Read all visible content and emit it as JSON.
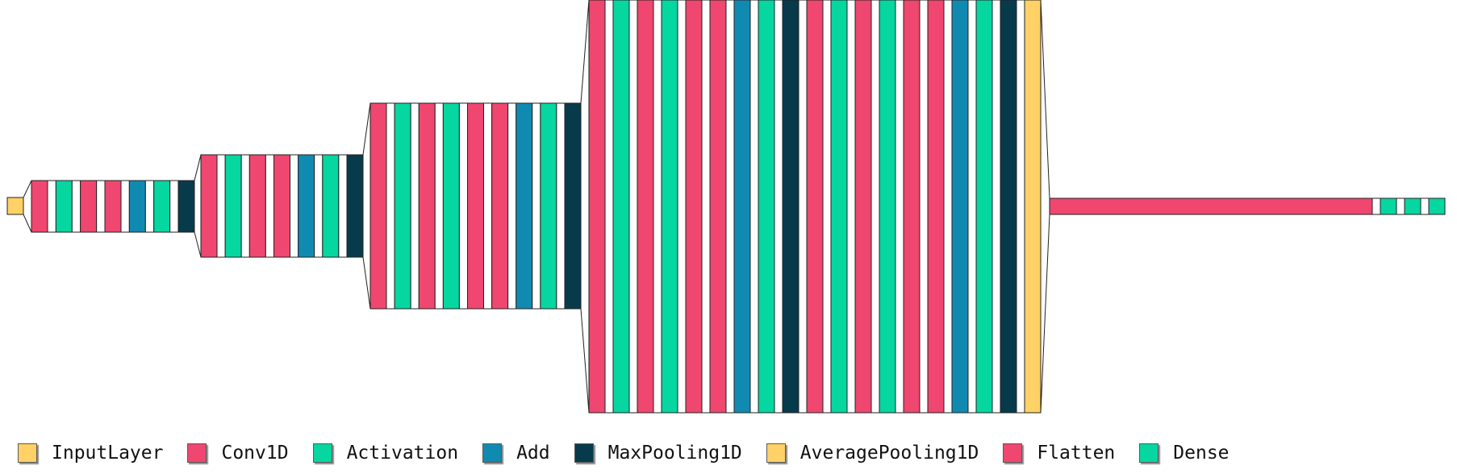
{
  "legend": [
    {
      "label": "InputLayer",
      "color": "#FFD166"
    },
    {
      "label": "Conv1D",
      "color": "#EF476F"
    },
    {
      "label": "Activation",
      "color": "#06D6A0"
    },
    {
      "label": "Add",
      "color": "#118AB2"
    },
    {
      "label": "MaxPooling1D",
      "color": "#073B4C"
    },
    {
      "label": "AveragePooling1D",
      "color": "#FFD166"
    },
    {
      "label": "Flatten",
      "color": "#EF476F"
    },
    {
      "label": "Dense",
      "color": "#06D6A0"
    }
  ],
  "blocks": [
    {
      "layers": [
        "InputLayer"
      ]
    },
    {
      "layers": [
        "Conv1D",
        "Activation",
        "Conv1D",
        "Conv1D",
        "Add",
        "Activation",
        "MaxPooling1D"
      ]
    },
    {
      "layers": [
        "Conv1D",
        "Activation",
        "Conv1D",
        "Conv1D",
        "Add",
        "Activation",
        "MaxPooling1D"
      ]
    },
    {
      "layers": [
        "Conv1D",
        "Activation",
        "Conv1D",
        "Activation",
        "Conv1D",
        "Conv1D",
        "Add",
        "Activation",
        "MaxPooling1D"
      ]
    },
    {
      "layers": [
        "Conv1D",
        "Activation",
        "Conv1D",
        "Activation",
        "Conv1D",
        "Conv1D",
        "Add",
        "Activation",
        "MaxPooling1D",
        "Conv1D",
        "Activation",
        "Conv1D",
        "Activation",
        "Conv1D",
        "Conv1D",
        "Add",
        "Activation",
        "MaxPooling1D",
        "AveragePooling1D"
      ]
    },
    {
      "layers": [
        "Flatten",
        "Dense",
        "Dense",
        "Dense"
      ]
    }
  ]
}
